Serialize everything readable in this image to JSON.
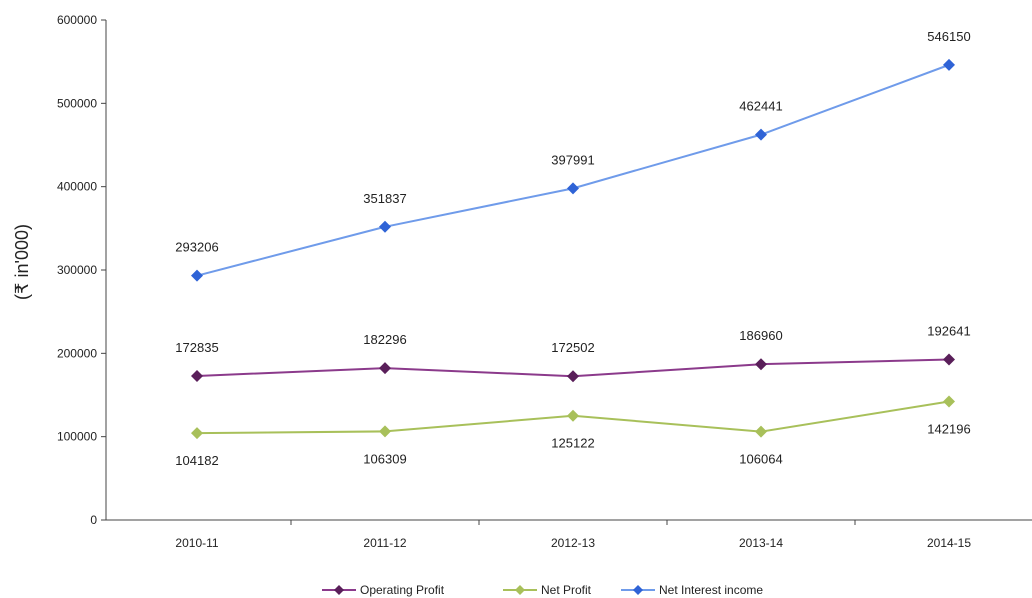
{
  "chart_data": {
    "type": "line",
    "title": "",
    "xlabel": "",
    "ylabel": "(₹ in'000)",
    "ylim": [
      0,
      600000
    ],
    "yticks": [
      "0",
      "100000",
      "200000",
      "300000",
      "400000",
      "500000",
      "600000"
    ],
    "grid": false,
    "legend_position": "bottom",
    "categories": [
      "2010-11",
      "2011-12",
      "2012-13",
      "2013-14",
      "2014-15"
    ],
    "series": [
      {
        "name": "Operating Profit",
        "color": "#8b3a8b",
        "marker_color": "#5a1f5a",
        "values": [
          172835,
          182296,
          172502,
          186960,
          192641
        ],
        "labels": [
          "172835",
          "182296",
          "172502",
          "186960",
          "192641"
        ],
        "label_position": "above"
      },
      {
        "name": "Net Profit",
        "color": "#a8c05a",
        "marker_color": "#a8c05a",
        "values": [
          104182,
          106309,
          125122,
          106064,
          142196
        ],
        "labels": [
          "104182",
          "106309",
          "125122",
          "106064",
          "142196"
        ],
        "label_position": "below"
      },
      {
        "name": "Net Interest income",
        "color": "#6f9bea",
        "marker_color": "#2f63d6",
        "values": [
          293206,
          351837,
          397991,
          462441,
          546150
        ],
        "labels": [
          "293206",
          "351837",
          "397991",
          "462441",
          "546150"
        ],
        "label_position": "above"
      }
    ]
  }
}
